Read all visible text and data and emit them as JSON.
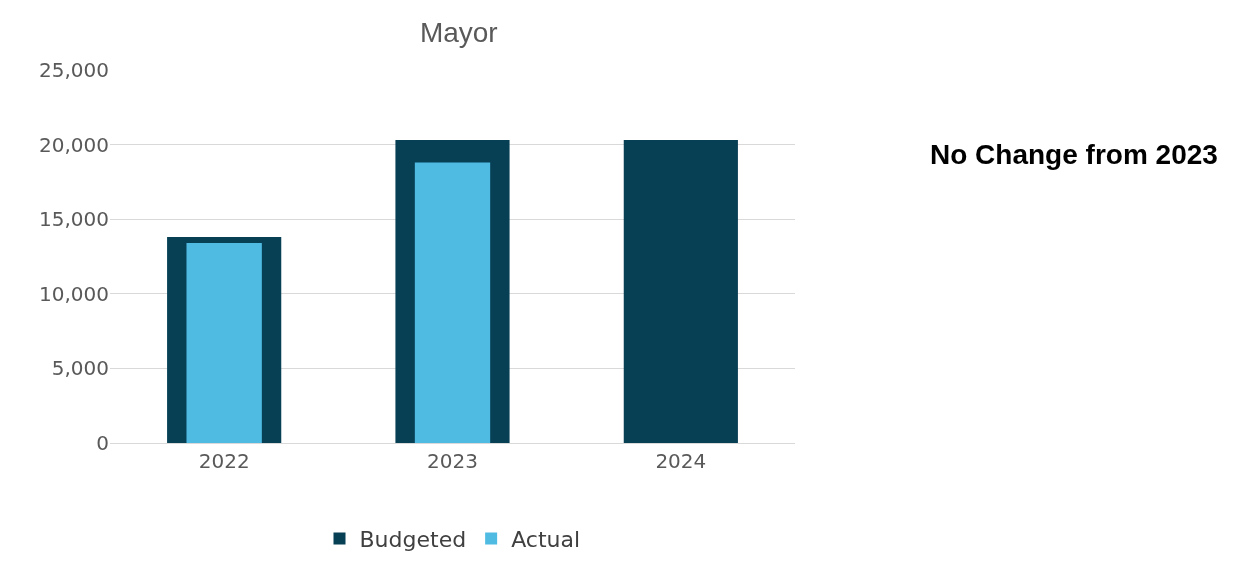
{
  "chart_data": {
    "type": "bar",
    "title": "Mayor",
    "categories": [
      "2022",
      "2023",
      "2024"
    ],
    "series": [
      {
        "name": "Budgeted",
        "color": "#073f55",
        "values": [
          13800,
          20300,
          20300
        ]
      },
      {
        "name": "Actual",
        "color": "#4fbbe3",
        "values": [
          13400,
          18800,
          null
        ]
      }
    ],
    "ylim": [
      0,
      25000
    ],
    "yticks": [
      {
        "value": 0,
        "label": "0"
      },
      {
        "value": 5000,
        "label": "5,000"
      },
      {
        "value": 10000,
        "label": "10,000"
      },
      {
        "value": 15000,
        "label": "15,000"
      },
      {
        "value": 20000,
        "label": "20,000"
      },
      {
        "value": 25000,
        "label": "25,000"
      }
    ],
    "grid": "y",
    "legend": "bottom",
    "annotations": [
      "No Change from 2023"
    ]
  }
}
